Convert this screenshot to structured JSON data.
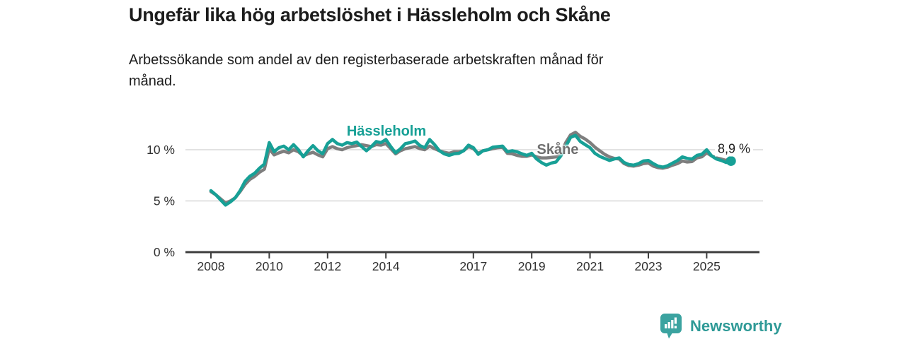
{
  "header": {
    "title": "Ungefär lika hög arbetslöshet i Hässleholm och Skåne",
    "subtitle": "Arbetssökande som andel av den registerbaserade arbetskraften månad för\nmånad."
  },
  "chart_data": {
    "type": "line",
    "title": "Ungefär lika hög arbetslöshet i Hässleholm och Skåne",
    "subtitle": "Arbetssökande som andel av den registerbaserade arbetskraften månad för månad.",
    "unit": "%",
    "x_start_year": 2008,
    "x_step_months": 2,
    "x_end_year": 2025.83,
    "ylim": [
      0,
      13
    ],
    "grid": "horizontal",
    "legend_position": "inline-labels",
    "y_ticks": [
      {
        "value": 0,
        "label": "0 %"
      },
      {
        "value": 5,
        "label": "5 %"
      },
      {
        "value": 10,
        "label": "10 %"
      }
    ],
    "x_ticks": [
      {
        "year": 2008,
        "label": "2008"
      },
      {
        "year": 2010,
        "label": "2010"
      },
      {
        "year": 2012,
        "label": "2012"
      },
      {
        "year": 2014,
        "label": "2014"
      },
      {
        "year": 2017,
        "label": "2017"
      },
      {
        "year": 2019,
        "label": "2019"
      },
      {
        "year": 2021,
        "label": "2021"
      },
      {
        "year": 2023,
        "label": "2023"
      },
      {
        "year": 2025,
        "label": "2025"
      }
    ],
    "series": [
      {
        "name": "Hässleholm",
        "color": "#17a096",
        "values": [
          6.0,
          5.6,
          5.1,
          4.6,
          4.9,
          5.3,
          6.0,
          6.9,
          7.4,
          7.7,
          8.2,
          8.6,
          10.7,
          9.8,
          10.2,
          10.35,
          10.0,
          10.5,
          10.0,
          9.3,
          9.9,
          10.4,
          9.9,
          9.6,
          10.6,
          11.0,
          10.6,
          10.45,
          10.7,
          10.6,
          10.75,
          10.3,
          9.9,
          10.3,
          10.8,
          10.7,
          11.0,
          10.3,
          9.7,
          10.1,
          10.6,
          10.7,
          10.85,
          10.4,
          10.2,
          11.0,
          10.5,
          9.9,
          9.6,
          9.45,
          9.6,
          9.65,
          9.9,
          10.45,
          10.2,
          9.55,
          9.9,
          10.0,
          10.25,
          10.3,
          10.35,
          9.8,
          9.9,
          9.8,
          9.6,
          9.45,
          9.65,
          9.1,
          8.75,
          8.5,
          8.7,
          8.8,
          9.4,
          10.3,
          11.2,
          11.4,
          10.8,
          10.5,
          10.2,
          9.65,
          9.35,
          9.15,
          8.95,
          9.1,
          9.2,
          8.75,
          8.55,
          8.5,
          8.65,
          8.9,
          8.95,
          8.65,
          8.4,
          8.3,
          8.45,
          8.7,
          8.95,
          9.3,
          9.15,
          9.1,
          9.45,
          9.55,
          10.0,
          9.4,
          9.1,
          8.95,
          8.75,
          8.9
        ]
      },
      {
        "name": "Skåne",
        "color": "#7e7e7e",
        "values": [
          5.9,
          5.6,
          5.2,
          4.8,
          5.0,
          5.3,
          5.9,
          6.6,
          7.1,
          7.4,
          7.8,
          8.1,
          10.1,
          9.5,
          9.7,
          9.85,
          9.7,
          10.0,
          9.8,
          9.4,
          9.6,
          9.75,
          9.5,
          9.3,
          10.1,
          10.3,
          10.1,
          10.0,
          10.2,
          10.3,
          10.4,
          10.5,
          10.4,
          10.3,
          10.5,
          10.45,
          10.6,
          10.1,
          9.6,
          9.9,
          10.1,
          10.2,
          10.3,
          10.1,
          10.0,
          10.35,
          10.1,
          9.9,
          9.75,
          9.65,
          9.8,
          9.8,
          9.9,
          10.3,
          10.1,
          9.65,
          9.9,
          10.0,
          10.1,
          10.2,
          10.25,
          9.65,
          9.6,
          9.45,
          9.35,
          9.35,
          9.5,
          9.3,
          9.2,
          9.2,
          9.25,
          9.3,
          9.6,
          10.7,
          11.45,
          11.7,
          11.3,
          11.05,
          10.7,
          10.25,
          9.9,
          9.55,
          9.3,
          9.15,
          9.1,
          8.65,
          8.45,
          8.4,
          8.5,
          8.65,
          8.7,
          8.4,
          8.25,
          8.2,
          8.3,
          8.5,
          8.65,
          8.9,
          8.8,
          8.85,
          9.2,
          9.3,
          9.7,
          9.4,
          9.2,
          9.1,
          8.95,
          9.25
        ]
      }
    ],
    "end_label": "8,9 %",
    "end_value": 8.9,
    "colors": {
      "hassleholm": "#17a096",
      "skane": "#7e7e7e",
      "axis": "#3d3d3d",
      "grid": "#d8d8d8",
      "text": "#303030"
    }
  },
  "footer": {
    "brand": "Newsworthy"
  }
}
